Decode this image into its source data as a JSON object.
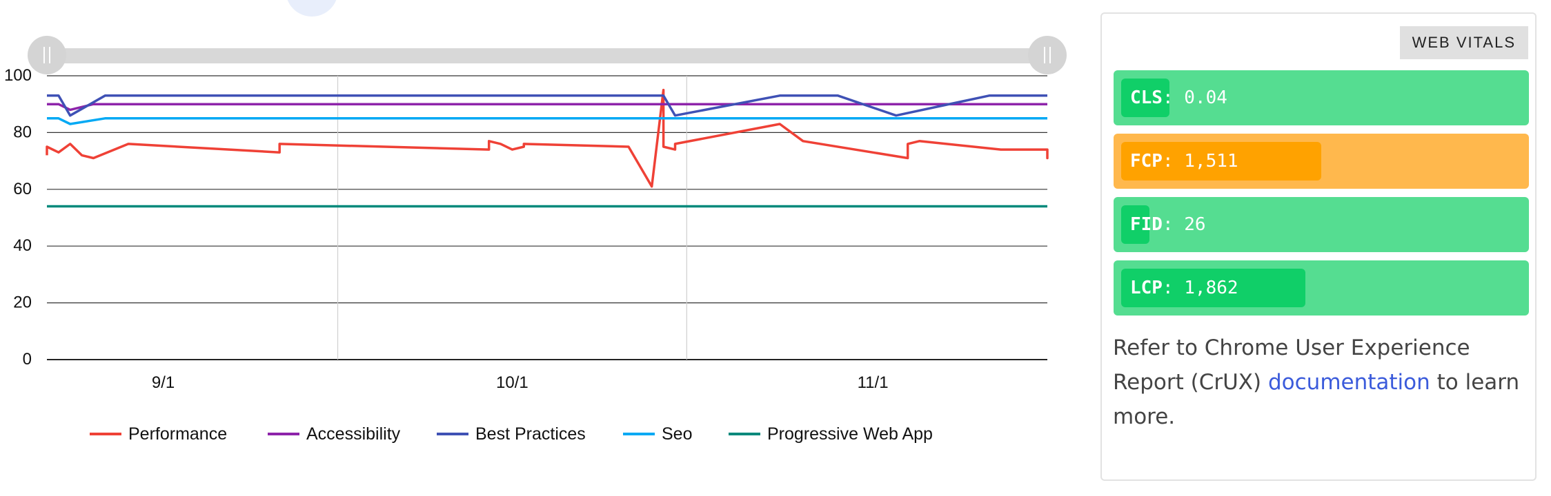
{
  "chart_data": {
    "type": "line",
    "x_tick_labels": [
      "9/1",
      "10/1",
      "11/1"
    ],
    "y_ticks": [
      0,
      20,
      40,
      60,
      80,
      100
    ],
    "ylim": [
      0,
      100
    ],
    "grid": true,
    "legend_position": "bottom",
    "series": [
      {
        "name": "Performance",
        "color": "#ef4136",
        "points": [
          [
            "2023-08-22",
            72
          ],
          [
            "2023-08-22",
            75
          ],
          [
            "2023-08-23",
            73
          ],
          [
            "2023-08-24",
            76
          ],
          [
            "2023-08-25",
            72
          ],
          [
            "2023-08-26",
            71
          ],
          [
            "2023-08-29",
            76
          ],
          [
            "2023-09-11",
            73
          ],
          [
            "2023-09-11",
            76
          ],
          [
            "2023-09-29",
            74
          ],
          [
            "2023-09-29",
            77
          ],
          [
            "2023-09-30",
            76
          ],
          [
            "2023-10-01",
            74
          ],
          [
            "2023-10-02",
            75
          ],
          [
            "2023-10-02",
            76
          ],
          [
            "2023-10-11",
            75
          ],
          [
            "2023-10-13",
            61
          ],
          [
            "2023-10-14",
            95
          ],
          [
            "2023-10-14",
            75
          ],
          [
            "2023-10-15",
            74
          ],
          [
            "2023-10-15",
            76
          ],
          [
            "2023-10-24",
            83
          ],
          [
            "2023-10-26",
            77
          ],
          [
            "2023-11-04",
            71
          ],
          [
            "2023-11-04",
            76
          ],
          [
            "2023-11-05",
            77
          ],
          [
            "2023-11-12",
            74
          ],
          [
            "2023-11-16",
            74
          ],
          [
            "2023-11-16",
            71
          ],
          [
            "2023-11-16",
            74
          ]
        ]
      },
      {
        "name": "Accessibility",
        "color": "#8e24aa",
        "points": [
          [
            "2023-08-22",
            90
          ],
          [
            "2023-08-23",
            90
          ],
          [
            "2023-08-24",
            88
          ],
          [
            "2023-08-26",
            90
          ],
          [
            "2023-11-16",
            90
          ]
        ]
      },
      {
        "name": "Best Practices",
        "color": "#3f51b5",
        "points": [
          [
            "2023-08-22",
            93
          ],
          [
            "2023-08-23",
            93
          ],
          [
            "2023-08-24",
            86
          ],
          [
            "2023-08-27",
            93
          ],
          [
            "2023-10-14",
            93
          ],
          [
            "2023-10-15",
            86
          ],
          [
            "2023-10-24",
            93
          ],
          [
            "2023-10-29",
            93
          ],
          [
            "2023-11-03",
            86
          ],
          [
            "2023-11-11",
            93
          ],
          [
            "2023-11-16",
            93
          ]
        ]
      },
      {
        "name": "Seo",
        "color": "#03a9f4",
        "points": [
          [
            "2023-08-22",
            85
          ],
          [
            "2023-08-23",
            85
          ],
          [
            "2023-08-24",
            83
          ],
          [
            "2023-08-27",
            85
          ],
          [
            "2023-11-16",
            85
          ]
        ]
      },
      {
        "name": "Progressive Web App",
        "color": "#00897b",
        "points": [
          [
            "2023-08-22",
            54
          ],
          [
            "2023-11-16",
            54
          ]
        ]
      }
    ]
  },
  "web_vitals": {
    "button_label": "WEB VITALS",
    "metrics": [
      {
        "name": "CLS",
        "value": "0.04",
        "level": 0.12,
        "status": "good",
        "bg": "#55dd91",
        "fill": "#10cf68"
      },
      {
        "name": "FCP",
        "value": "1,511",
        "level": 0.5,
        "status": "needs-improvement",
        "bg": "#ffb84d",
        "fill": "#ffa200"
      },
      {
        "name": "FID",
        "value": "26",
        "level": 0.07,
        "status": "good",
        "bg": "#55dd91",
        "fill": "#10cf68"
      },
      {
        "name": "LCP",
        "value": "1,862",
        "level": 0.46,
        "status": "good",
        "bg": "#55dd91",
        "fill": "#10cf68"
      }
    ],
    "note": {
      "before": "Refer to Chrome User Experience Report (CrUX) ",
      "link": "documentation",
      "after": " to learn more."
    }
  }
}
